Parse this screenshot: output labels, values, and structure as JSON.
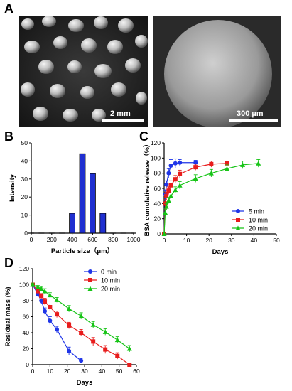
{
  "panels": {
    "a": "A",
    "b": "B",
    "c": "C",
    "d": "D"
  },
  "images": {
    "left_scale": "2 mm",
    "right_scale": "300 µm"
  },
  "chart_data": [
    {
      "panel": "B",
      "type": "bar",
      "categories": [
        0,
        100,
        200,
        300,
        400,
        500,
        600,
        700,
        800,
        900,
        1000
      ],
      "values": [
        0,
        0,
        0,
        0,
        11,
        44,
        33,
        11,
        0,
        0,
        0
      ],
      "xlabel": "Particle size（μm）",
      "ylabel": "Intensity",
      "xlim": [
        0,
        1000
      ],
      "ylim": [
        0,
        50
      ],
      "xticks": [
        0,
        200,
        400,
        600,
        800,
        1000
      ],
      "yticks": [
        0,
        10,
        20,
        30,
        40,
        50
      ],
      "color": "#1f2fd0"
    },
    {
      "panel": "C",
      "type": "line",
      "xlabel": "Days",
      "ylabel": "BSA cumulative release（%）",
      "xlim": [
        0,
        50
      ],
      "ylim": [
        0,
        120
      ],
      "xticks": [
        0,
        10,
        20,
        30,
        40,
        50
      ],
      "yticks": [
        0,
        20,
        40,
        60,
        80,
        100,
        120
      ],
      "legend": "bottom-right",
      "series": [
        {
          "name": "5 min",
          "color": "#1f35e8",
          "marker": "circle",
          "x": [
            0,
            0.5,
            1,
            2,
            3,
            5,
            7,
            14
          ],
          "y": [
            0,
            52,
            65,
            80,
            90,
            93,
            94,
            94
          ],
          "err": [
            0,
            6,
            5,
            6,
            8,
            6,
            4,
            3
          ]
        },
        {
          "name": "10 min",
          "color": "#e81c1c",
          "marker": "square",
          "x": [
            0,
            0.5,
            1,
            2,
            3,
            5,
            7,
            14,
            21,
            28
          ],
          "y": [
            0,
            40,
            50,
            57,
            64,
            72,
            79,
            88,
            92,
            93
          ],
          "err": [
            0,
            5,
            5,
            5,
            6,
            5,
            5,
            4,
            4,
            3
          ]
        },
        {
          "name": "20 min",
          "color": "#16c416",
          "marker": "triangle",
          "x": [
            0,
            0.5,
            1,
            2,
            3,
            5,
            7,
            14,
            21,
            28,
            35,
            42
          ],
          "y": [
            0,
            28,
            36,
            44,
            50,
            58,
            64,
            73,
            80,
            86,
            91,
            93
          ],
          "err": [
            0,
            4,
            4,
            4,
            4,
            4,
            5,
            5,
            5,
            5,
            5,
            5
          ]
        }
      ]
    },
    {
      "panel": "D",
      "type": "line",
      "xlabel": "Days",
      "ylabel": "Residual mass (%)",
      "xlim": [
        0,
        60
      ],
      "ylim": [
        0,
        120
      ],
      "xticks": [
        0,
        10,
        20,
        30,
        40,
        50,
        60
      ],
      "yticks": [
        0,
        20,
        40,
        60,
        80,
        100,
        120
      ],
      "legend": "top-right",
      "series": [
        {
          "name": "0 min",
          "color": "#1f35e8",
          "marker": "circle",
          "x": [
            0,
            3,
            5,
            7,
            10,
            14,
            21,
            28
          ],
          "y": [
            100,
            88,
            80,
            67,
            55,
            44,
            17,
            5
          ],
          "err": [
            2,
            3,
            4,
            4,
            5,
            4,
            5,
            3
          ]
        },
        {
          "name": "10 min",
          "color": "#e81c1c",
          "marker": "square",
          "x": [
            0,
            3,
            5,
            7,
            10,
            14,
            21,
            28,
            35,
            42,
            49,
            56
          ],
          "y": [
            100,
            92,
            86,
            79,
            72,
            63,
            49,
            40,
            29,
            19,
            11,
            0
          ],
          "err": [
            2,
            3,
            3,
            4,
            4,
            4,
            4,
            4,
            5,
            5,
            4,
            2
          ]
        },
        {
          "name": "20 min",
          "color": "#16c416",
          "marker": "triangle",
          "x": [
            0,
            3,
            5,
            7,
            10,
            14,
            21,
            28,
            35,
            42,
            49,
            56
          ],
          "y": [
            100,
            97,
            95,
            92,
            87,
            81,
            70,
            61,
            50,
            41,
            31,
            20
          ],
          "err": [
            2,
            2,
            2,
            3,
            3,
            3,
            4,
            4,
            4,
            4,
            4,
            4
          ]
        }
      ]
    }
  ]
}
